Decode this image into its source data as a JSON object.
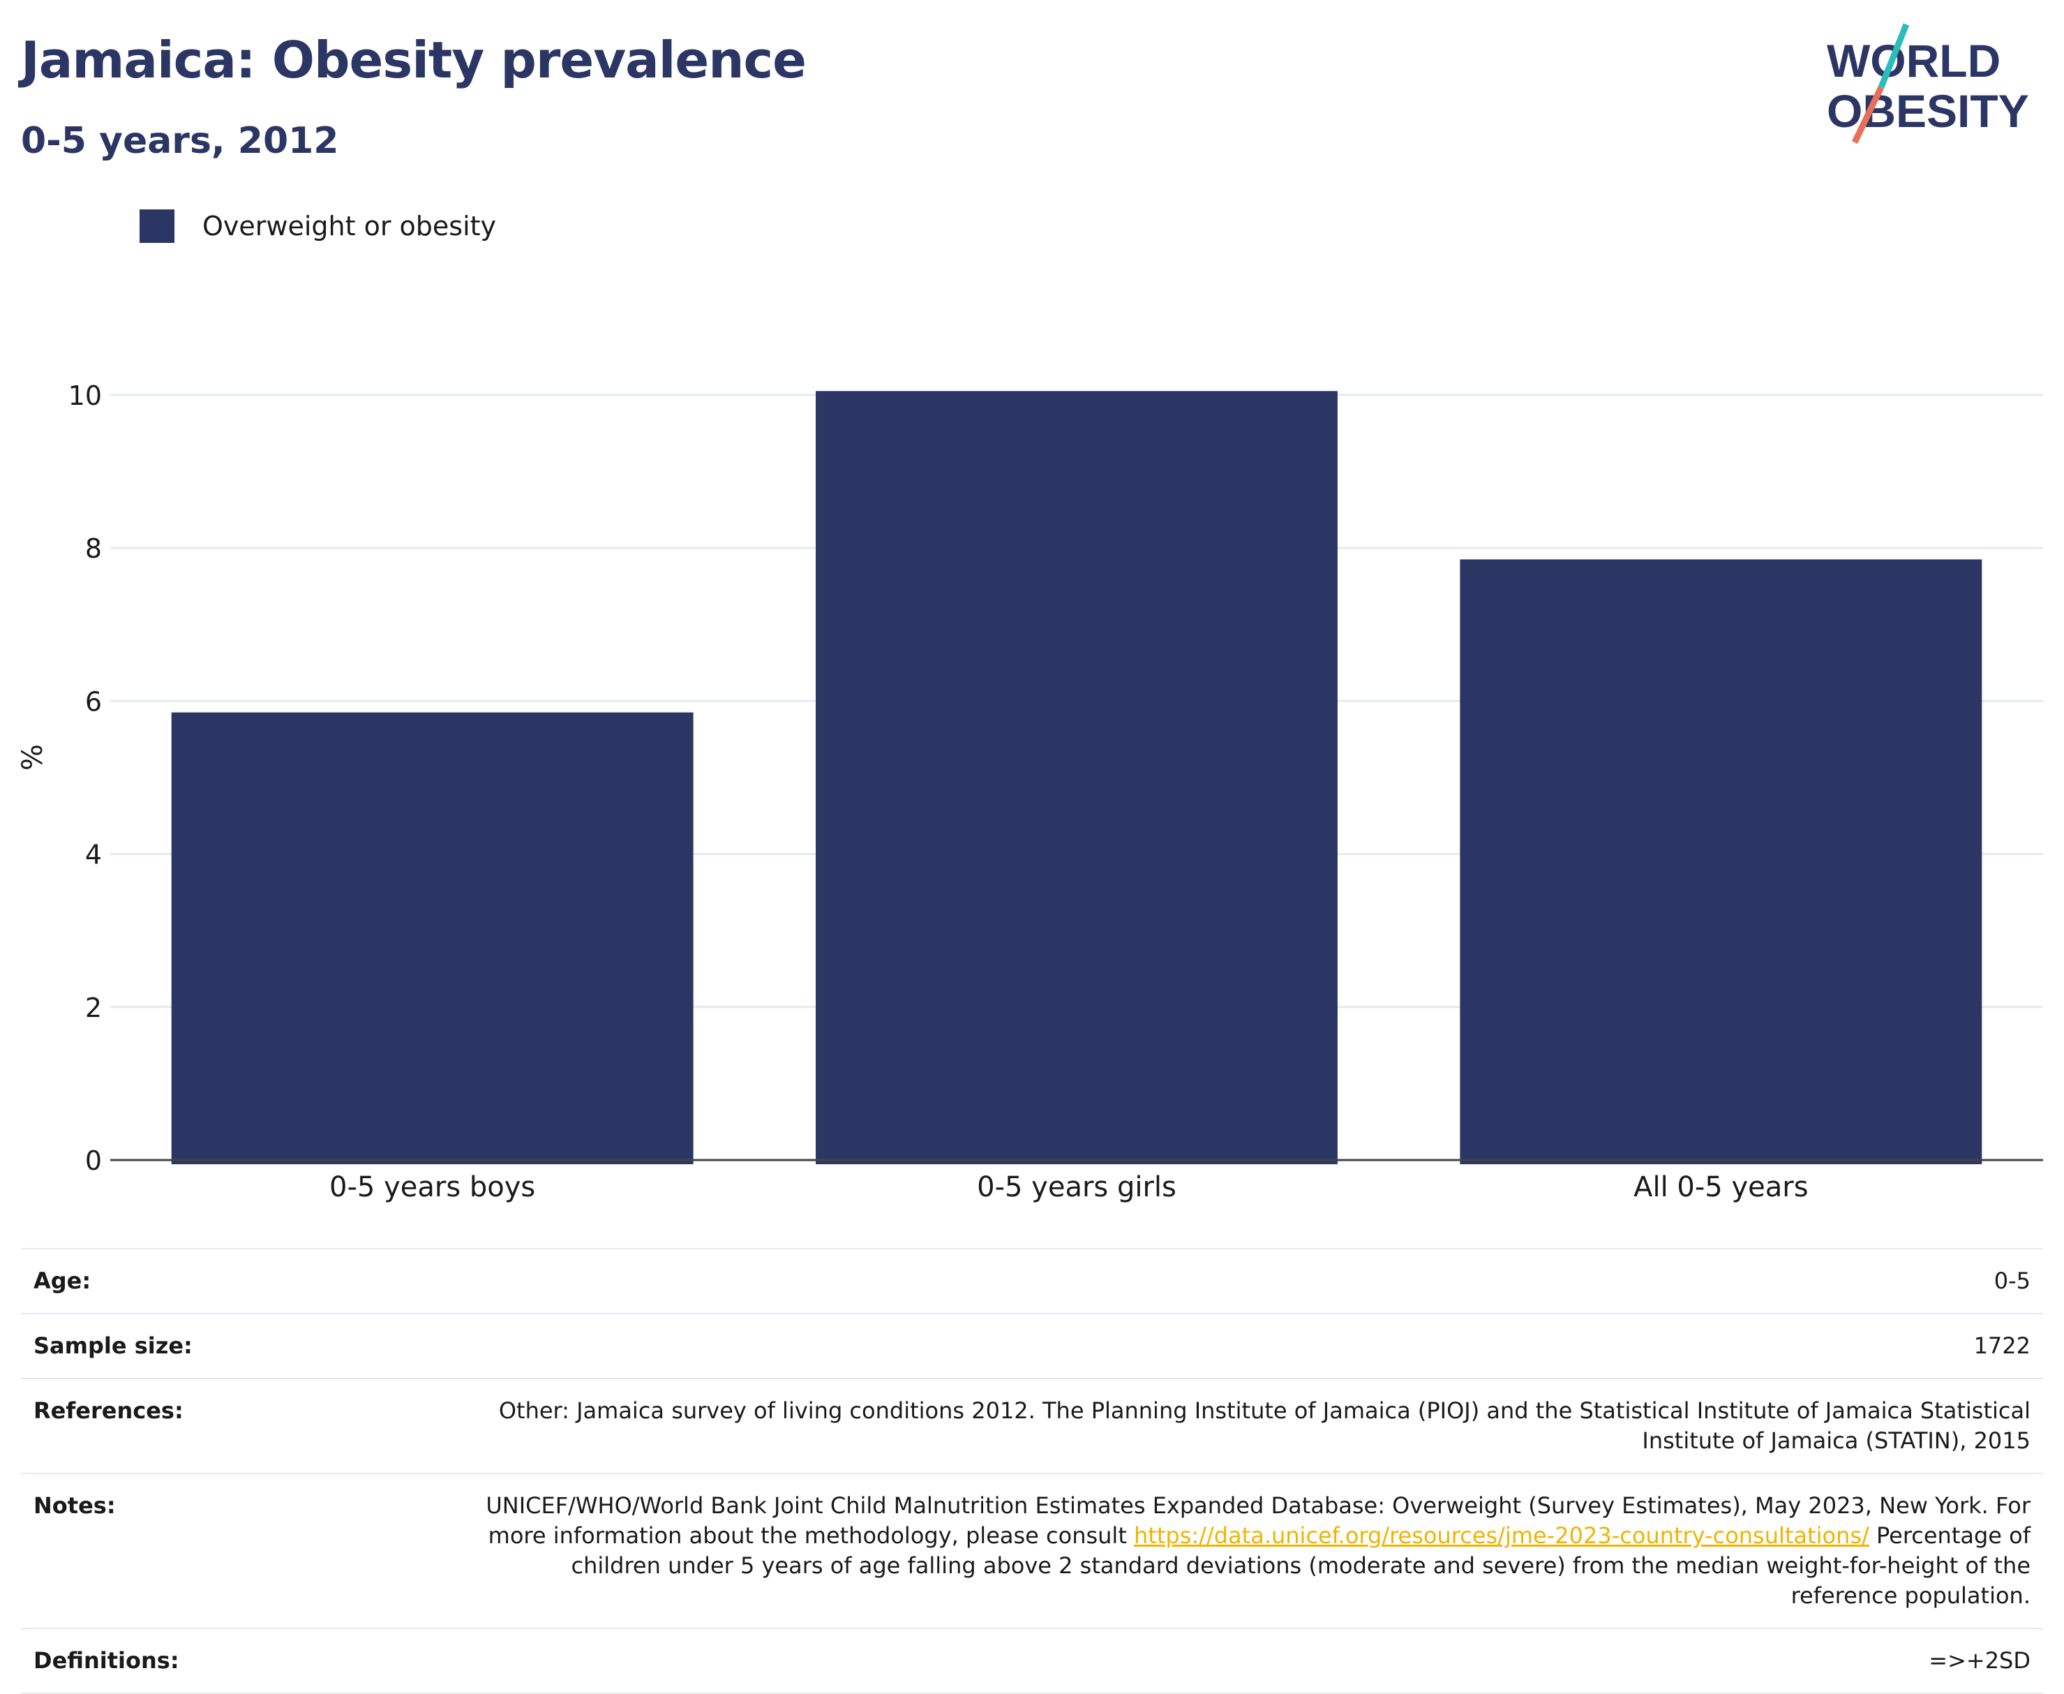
{
  "header": {
    "title": "Jamaica: Obesity prevalence",
    "subtitle": "0-5 years, 2012"
  },
  "logo": {
    "line1": "WORLD",
    "line2": "OBESITY"
  },
  "legend": {
    "label": "Overweight or obesity"
  },
  "colors": {
    "bar": "#2b3664",
    "grid": "#e6e9f2",
    "logo_teal": "#2bbcbc",
    "logo_coral": "#e8705a",
    "link": "#f0b400"
  },
  "chart_data": {
    "type": "bar",
    "categories": [
      "0-5 years boys",
      "0-5 years girls",
      "All 0-5 years"
    ],
    "series": [
      {
        "name": "Overweight or obesity",
        "values": [
          5.85,
          10.05,
          7.85
        ]
      }
    ],
    "ylabel": "%",
    "ylim": [
      0,
      10.6
    ],
    "yticks": [
      0,
      2,
      4,
      6,
      8,
      10
    ],
    "grid": true,
    "legend_position": "top-left"
  },
  "info": {
    "age": {
      "label": "Age:",
      "value": "0-5"
    },
    "sample_size": {
      "label": "Sample size:",
      "value": "1722"
    },
    "references": {
      "label": "References:",
      "value": "Other: Jamaica survey of living conditions 2012. The Planning Institute of Jamaica (PIOJ) and the Statistical Institute of Jamaica Statistical Institute of Jamaica (STATIN), 2015"
    },
    "notes": {
      "label": "Notes:",
      "text_before": "UNICEF/WHO/World Bank Joint Child Malnutrition Estimates Expanded Database: Overweight (Survey Estimates), May 2023, New York. For more information about the methodology, please consult ",
      "link": "https://data.unicef.org/resources/jme-2023-country-consultations/",
      "text_after": " Percentage of children under 5 years of age falling above 2 standard deviations (moderate and severe) from the median weight-for-height of the reference population."
    },
    "definitions": {
      "label": "Definitions:",
      "value": "=>+2SD"
    }
  }
}
